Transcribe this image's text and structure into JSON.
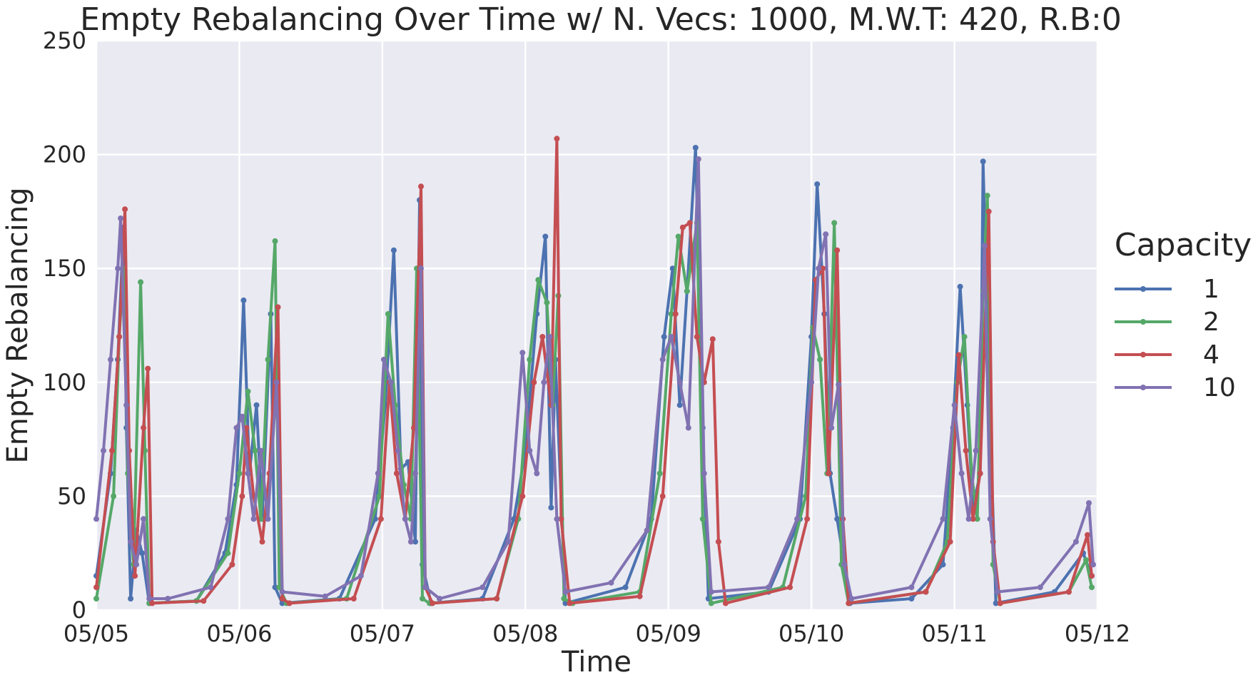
{
  "chart_data": {
    "type": "line",
    "title": "Empty Rebalancing Over Time w/ N. Vecs: 1000, M.W.T: 420, R.B:0",
    "xlabel": "Time",
    "ylabel": "Empty Rebalancing",
    "ylim": [
      0,
      250
    ],
    "xlim": [
      0,
      7
    ],
    "x_ticks": [
      {
        "value": 0,
        "label": "05/05"
      },
      {
        "value": 1,
        "label": "05/06"
      },
      {
        "value": 2,
        "label": "05/07"
      },
      {
        "value": 3,
        "label": "05/08"
      },
      {
        "value": 4,
        "label": "05/09"
      },
      {
        "value": 5,
        "label": "05/10"
      },
      {
        "value": 6,
        "label": "05/11"
      },
      {
        "value": 7,
        "label": "05/12"
      }
    ],
    "y_ticks": [
      0,
      50,
      100,
      150,
      200,
      250
    ],
    "grid": true,
    "legend": {
      "title": "Capacity",
      "placement": "right"
    },
    "series": [
      {
        "name": "1",
        "color": "#4c72b0",
        "points": [
          [
            0.0,
            15
          ],
          [
            0.1,
            60
          ],
          [
            0.15,
            110
          ],
          [
            0.19,
            168
          ],
          [
            0.21,
            80
          ],
          [
            0.24,
            5
          ],
          [
            0.28,
            35
          ],
          [
            0.32,
            25
          ],
          [
            0.37,
            3
          ],
          [
            0.7,
            4
          ],
          [
            0.9,
            25
          ],
          [
            0.98,
            55
          ],
          [
            1.03,
            136
          ],
          [
            1.07,
            60
          ],
          [
            1.12,
            90
          ],
          [
            1.16,
            40
          ],
          [
            1.22,
            130
          ],
          [
            1.25,
            10
          ],
          [
            1.3,
            3
          ],
          [
            1.7,
            5
          ],
          [
            1.95,
            40
          ],
          [
            2.02,
            90
          ],
          [
            2.08,
            158
          ],
          [
            2.13,
            62
          ],
          [
            2.18,
            65
          ],
          [
            2.23,
            30
          ],
          [
            2.26,
            180
          ],
          [
            2.28,
            20
          ],
          [
            2.34,
            3
          ],
          [
            2.7,
            5
          ],
          [
            2.92,
            40
          ],
          [
            3.0,
            70
          ],
          [
            3.08,
            130
          ],
          [
            3.14,
            164
          ],
          [
            3.18,
            45
          ],
          [
            3.21,
            110
          ],
          [
            3.28,
            3
          ],
          [
            3.7,
            10
          ],
          [
            3.88,
            40
          ],
          [
            3.97,
            120
          ],
          [
            4.03,
            150
          ],
          [
            4.08,
            90
          ],
          [
            4.13,
            140
          ],
          [
            4.19,
            203
          ],
          [
            4.24,
            80
          ],
          [
            4.28,
            5
          ],
          [
            4.7,
            8
          ],
          [
            4.92,
            40
          ],
          [
            5.0,
            120
          ],
          [
            5.04,
            187
          ],
          [
            5.09,
            130
          ],
          [
            5.13,
            60
          ],
          [
            5.18,
            40
          ],
          [
            5.23,
            20
          ],
          [
            5.27,
            3
          ],
          [
            5.7,
            5
          ],
          [
            5.92,
            20
          ],
          [
            5.99,
            80
          ],
          [
            6.04,
            142
          ],
          [
            6.09,
            90
          ],
          [
            6.13,
            45
          ],
          [
            6.18,
            60
          ],
          [
            6.2,
            197
          ],
          [
            6.24,
            100
          ],
          [
            6.29,
            3
          ],
          [
            6.7,
            8
          ],
          [
            6.9,
            25
          ],
          [
            6.96,
            15
          ]
        ]
      },
      {
        "name": "2",
        "color": "#55a868",
        "points": [
          [
            0.0,
            5
          ],
          [
            0.12,
            50
          ],
          [
            0.16,
            120
          ],
          [
            0.19,
            150
          ],
          [
            0.22,
            60
          ],
          [
            0.26,
            20
          ],
          [
            0.31,
            144
          ],
          [
            0.34,
            70
          ],
          [
            0.37,
            3
          ],
          [
            0.7,
            4
          ],
          [
            0.92,
            25
          ],
          [
            1.0,
            60
          ],
          [
            1.06,
            96
          ],
          [
            1.11,
            70
          ],
          [
            1.15,
            40
          ],
          [
            1.2,
            110
          ],
          [
            1.25,
            162
          ],
          [
            1.28,
            10
          ],
          [
            1.33,
            3
          ],
          [
            1.75,
            5
          ],
          [
            1.98,
            50
          ],
          [
            2.04,
            130
          ],
          [
            2.09,
            90
          ],
          [
            2.15,
            55
          ],
          [
            2.2,
            40
          ],
          [
            2.24,
            150
          ],
          [
            2.28,
            5
          ],
          [
            2.33,
            3
          ],
          [
            2.8,
            5
          ],
          [
            2.95,
            40
          ],
          [
            3.03,
            110
          ],
          [
            3.09,
            145
          ],
          [
            3.15,
            135
          ],
          [
            3.19,
            90
          ],
          [
            3.23,
            138
          ],
          [
            3.27,
            5
          ],
          [
            3.33,
            3
          ],
          [
            3.8,
            8
          ],
          [
            3.94,
            60
          ],
          [
            4.02,
            130
          ],
          [
            4.07,
            164
          ],
          [
            4.13,
            140
          ],
          [
            4.2,
            170
          ],
          [
            4.24,
            40
          ],
          [
            4.3,
            3
          ],
          [
            4.8,
            10
          ],
          [
            4.96,
            50
          ],
          [
            5.01,
            124
          ],
          [
            5.06,
            110
          ],
          [
            5.11,
            60
          ],
          [
            5.16,
            170
          ],
          [
            5.21,
            20
          ],
          [
            5.26,
            3
          ],
          [
            5.8,
            8
          ],
          [
            5.95,
            30
          ],
          [
            6.02,
            100
          ],
          [
            6.07,
            120
          ],
          [
            6.12,
            60
          ],
          [
            6.16,
            40
          ],
          [
            6.2,
            140
          ],
          [
            6.23,
            182
          ],
          [
            6.27,
            20
          ],
          [
            6.32,
            3
          ],
          [
            6.8,
            8
          ],
          [
            6.92,
            22
          ],
          [
            6.96,
            10
          ]
        ]
      },
      {
        "name": "4",
        "color": "#c44e52",
        "points": [
          [
            0.0,
            10
          ],
          [
            0.11,
            70
          ],
          [
            0.16,
            120
          ],
          [
            0.2,
            176
          ],
          [
            0.23,
            70
          ],
          [
            0.27,
            15
          ],
          [
            0.33,
            80
          ],
          [
            0.36,
            106
          ],
          [
            0.39,
            3
          ],
          [
            0.75,
            4
          ],
          [
            0.95,
            20
          ],
          [
            1.02,
            50
          ],
          [
            1.05,
            80
          ],
          [
            1.1,
            50
          ],
          [
            1.16,
            30
          ],
          [
            1.21,
            60
          ],
          [
            1.27,
            133
          ],
          [
            1.3,
            5
          ],
          [
            1.35,
            3
          ],
          [
            1.8,
            5
          ],
          [
            1.99,
            40
          ],
          [
            2.05,
            100
          ],
          [
            2.1,
            60
          ],
          [
            2.16,
            40
          ],
          [
            2.22,
            80
          ],
          [
            2.27,
            186
          ],
          [
            2.3,
            10
          ],
          [
            2.35,
            3
          ],
          [
            2.8,
            5
          ],
          [
            2.98,
            50
          ],
          [
            3.06,
            100
          ],
          [
            3.12,
            120
          ],
          [
            3.18,
            90
          ],
          [
            3.22,
            207
          ],
          [
            3.25,
            40
          ],
          [
            3.31,
            3
          ],
          [
            3.8,
            6
          ],
          [
            3.96,
            50
          ],
          [
            4.05,
            130
          ],
          [
            4.1,
            168
          ],
          [
            4.15,
            170
          ],
          [
            4.2,
            120
          ],
          [
            4.25,
            100
          ],
          [
            4.31,
            119
          ],
          [
            4.35,
            30
          ],
          [
            4.4,
            3
          ],
          [
            4.85,
            10
          ],
          [
            4.97,
            40
          ],
          [
            5.03,
            145
          ],
          [
            5.08,
            150
          ],
          [
            5.12,
            60
          ],
          [
            5.18,
            158
          ],
          [
            5.22,
            40
          ],
          [
            5.26,
            3
          ],
          [
            5.8,
            8
          ],
          [
            5.97,
            30
          ],
          [
            6.03,
            112
          ],
          [
            6.08,
            70
          ],
          [
            6.13,
            40
          ],
          [
            6.18,
            60
          ],
          [
            6.24,
            175
          ],
          [
            6.27,
            30
          ],
          [
            6.32,
            3
          ],
          [
            6.8,
            8
          ],
          [
            6.93,
            33
          ],
          [
            6.96,
            15
          ]
        ]
      },
      {
        "name": "10",
        "color": "#8172b2",
        "points": [
          [
            0.0,
            40
          ],
          [
            0.05,
            70
          ],
          [
            0.1,
            110
          ],
          [
            0.15,
            150
          ],
          [
            0.17,
            172
          ],
          [
            0.21,
            90
          ],
          [
            0.24,
            30
          ],
          [
            0.28,
            20
          ],
          [
            0.33,
            40
          ],
          [
            0.37,
            5
          ],
          [
            0.5,
            5
          ],
          [
            0.8,
            10
          ],
          [
            0.92,
            40
          ],
          [
            0.98,
            80
          ],
          [
            1.02,
            85
          ],
          [
            1.06,
            60
          ],
          [
            1.1,
            40
          ],
          [
            1.15,
            70
          ],
          [
            1.2,
            40
          ],
          [
            1.26,
            100
          ],
          [
            1.3,
            8
          ],
          [
            1.6,
            6
          ],
          [
            1.85,
            15
          ],
          [
            1.97,
            60
          ],
          [
            2.01,
            110
          ],
          [
            2.06,
            100
          ],
          [
            2.11,
            70
          ],
          [
            2.16,
            40
          ],
          [
            2.2,
            30
          ],
          [
            2.23,
            60
          ],
          [
            2.27,
            150
          ],
          [
            2.3,
            10
          ],
          [
            2.4,
            5
          ],
          [
            2.7,
            10
          ],
          [
            2.88,
            30
          ],
          [
            2.98,
            113
          ],
          [
            3.03,
            70
          ],
          [
            3.08,
            60
          ],
          [
            3.13,
            100
          ],
          [
            3.17,
            120
          ],
          [
            3.22,
            40
          ],
          [
            3.28,
            8
          ],
          [
            3.6,
            12
          ],
          [
            3.85,
            35
          ],
          [
            3.96,
            110
          ],
          [
            4.02,
            120
          ],
          [
            4.08,
            100
          ],
          [
            4.14,
            80
          ],
          [
            4.21,
            198
          ],
          [
            4.25,
            60
          ],
          [
            4.3,
            8
          ],
          [
            4.7,
            10
          ],
          [
            4.9,
            40
          ],
          [
            5.0,
            100
          ],
          [
            5.05,
            150
          ],
          [
            5.1,
            165
          ],
          [
            5.14,
            80
          ],
          [
            5.19,
            99
          ],
          [
            5.23,
            20
          ],
          [
            5.28,
            5
          ],
          [
            5.7,
            10
          ],
          [
            5.92,
            40
          ],
          [
            6.0,
            90
          ],
          [
            6.05,
            60
          ],
          [
            6.1,
            40
          ],
          [
            6.15,
            70
          ],
          [
            6.21,
            160
          ],
          [
            6.25,
            40
          ],
          [
            6.3,
            8
          ],
          [
            6.6,
            10
          ],
          [
            6.85,
            30
          ],
          [
            6.94,
            47
          ],
          [
            6.97,
            20
          ]
        ]
      }
    ]
  }
}
